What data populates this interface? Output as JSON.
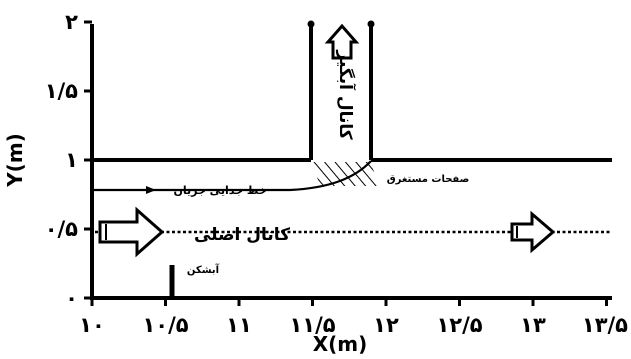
{
  "figure": {
    "x_axis": {
      "label": "X(m)",
      "ticks": [
        {
          "value": 10,
          "label": "۱۰"
        },
        {
          "value": 10.5,
          "label": "۱۰/۵"
        },
        {
          "value": 11,
          "label": "۱۱"
        },
        {
          "value": 11.5,
          "label": "۱۱/۵"
        },
        {
          "value": 12,
          "label": "۱۲"
        },
        {
          "value": 12.5,
          "label": "۱۲/۵"
        },
        {
          "value": 13,
          "label": "۱۳"
        },
        {
          "value": 13.5,
          "label": "۱۳/۵"
        }
      ]
    },
    "y_axis": {
      "label": "Y(m)",
      "ticks": [
        {
          "value": 0,
          "label": "۰"
        },
        {
          "value": 0.5,
          "label": "۰/۵"
        },
        {
          "value": 1,
          "label": "۱"
        },
        {
          "value": 1.5,
          "label": "۱/۵"
        },
        {
          "value": 2,
          "label": "۲"
        }
      ]
    },
    "annotations": {
      "main_channel": "کانال اصلی",
      "branch_channel": "کانال آبگیر",
      "dividing_streamline": "خط جدایی جریان",
      "submerged_plate": "صفحات مستغرق",
      "spillway": "آبشکن"
    }
  }
}
